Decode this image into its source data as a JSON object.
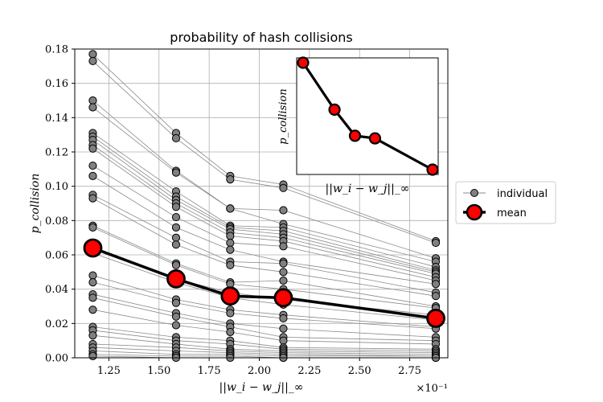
{
  "chart_data": [
    {
      "type": "line",
      "title": "probability of hash collisions",
      "xlabel": "||w_i − w_j||_∞",
      "ylabel": "p_collision",
      "x_exponent_label": "×10⁻¹",
      "x": [
        1.17,
        1.585,
        1.855,
        2.12,
        2.88
      ],
      "xlim": [
        1.08,
        2.94
      ],
      "ylim": [
        0,
        0.18
      ],
      "xticks": [
        "1.25",
        "1.50",
        "1.75",
        "2.00",
        "2.25",
        "2.50",
        "2.75"
      ],
      "xtick_values": [
        1.25,
        1.5,
        1.75,
        2.0,
        2.25,
        2.5,
        2.75
      ],
      "yticks": [
        "0.00",
        "0.02",
        "0.04",
        "0.06",
        "0.08",
        "0.10",
        "0.12",
        "0.14",
        "0.16",
        "0.18"
      ],
      "ytick_values": [
        0,
        0.02,
        0.04,
        0.06,
        0.08,
        0.1,
        0.12,
        0.14,
        0.16,
        0.18
      ],
      "grid": true,
      "legend": {
        "placement": "outside-right",
        "entries": [
          "individual",
          "mean"
        ]
      },
      "series": [
        {
          "name": "mean",
          "values": [
            0.064,
            0.046,
            0.036,
            0.035,
            0.023
          ]
        },
        {
          "name": "individual",
          "lines": [
            [
              0.177,
              0.131,
              0.106,
              0.101,
              0.068
            ],
            [
              0.173,
              0.128,
              0.104,
              0.099,
              0.067
            ],
            [
              0.15,
              0.109,
              0.087,
              0.086,
              0.058
            ],
            [
              0.146,
              0.108,
              0.087,
              0.078,
              0.056
            ],
            [
              0.131,
              0.097,
              0.077,
              0.076,
              0.053
            ],
            [
              0.129,
              0.094,
              0.076,
              0.074,
              0.051
            ],
            [
              0.127,
              0.092,
              0.075,
              0.072,
              0.05
            ],
            [
              0.124,
              0.09,
              0.073,
              0.07,
              0.049
            ],
            [
              0.122,
              0.088,
              0.071,
              0.068,
              0.047
            ],
            [
              0.112,
              0.082,
              0.067,
              0.065,
              0.045
            ],
            [
              0.106,
              0.076,
              0.063,
              0.056,
              0.043
            ],
            [
              0.095,
              0.07,
              0.056,
              0.055,
              0.038
            ],
            [
              0.093,
              0.066,
              0.054,
              0.05,
              0.036
            ],
            [
              0.077,
              0.055,
              0.044,
              0.045,
              0.03
            ],
            [
              0.076,
              0.054,
              0.043,
              0.04,
              0.029
            ],
            [
              0.064,
              0.046,
              0.038,
              0.034,
              0.025
            ],
            [
              0.061,
              0.044,
              0.035,
              0.031,
              0.022
            ],
            [
              0.048,
              0.034,
              0.028,
              0.025,
              0.018
            ],
            [
              0.044,
              0.032,
              0.026,
              0.023,
              0.017
            ],
            [
              0.037,
              0.026,
              0.02,
              0.017,
              0.012
            ],
            [
              0.035,
              0.024,
              0.018,
              0.012,
              0.01
            ],
            [
              0.028,
              0.019,
              0.015,
              0.01,
              0.008
            ],
            [
              0.018,
              0.012,
              0.01,
              0.006,
              0.005
            ],
            [
              0.016,
              0.01,
              0.008,
              0.005,
              0.004
            ],
            [
              0.013,
              0.008,
              0.005,
              0.004,
              0.003
            ],
            [
              0.008,
              0.006,
              0.004,
              0.003,
              0.002
            ],
            [
              0.006,
              0.004,
              0.003,
              0.002,
              0.001
            ],
            [
              0.004,
              0.002,
              0.002,
              0.001,
              0.001
            ],
            [
              0.002,
              0.001,
              0.001,
              0.0,
              0.0
            ],
            [
              0.001,
              0.0,
              0.0,
              0.0,
              0.0
            ]
          ]
        }
      ]
    },
    {
      "type": "line",
      "xlabel": "||w_i − w_j||_∞",
      "ylabel": "p_collision",
      "x": [
        1.17,
        1.585,
        1.855,
        2.12,
        2.88
      ],
      "series": [
        {
          "name": "mean",
          "values": [
            0.064,
            0.046,
            0.036,
            0.035,
            0.023
          ]
        }
      ]
    }
  ]
}
